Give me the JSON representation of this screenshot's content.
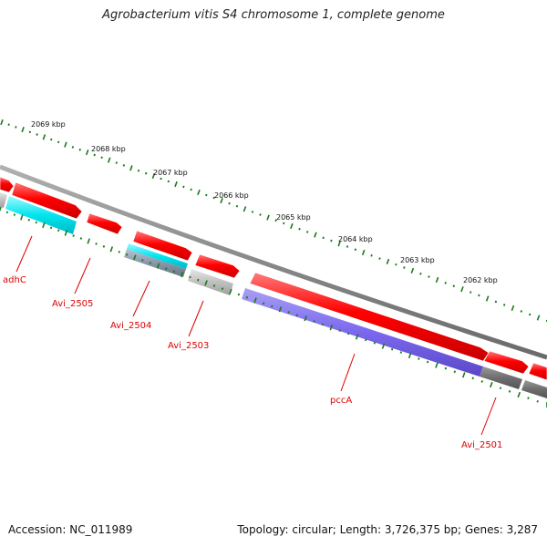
{
  "title": "Agrobacterium vitis S4 chromosome 1, complete genome",
  "footer": {
    "accession": "Accession: NC_011989",
    "summary": "Topology: circular; Length: 3,726,375 bp; Genes: 3,287"
  },
  "colors": {
    "backbone": "#8c8c8c",
    "tick": "#1a7a1a",
    "forward_gene": "#ff0000",
    "label": "#e00000",
    "cyan": "#00e5ee",
    "light_grey": "#c0c0c0",
    "blue_violet": "#7b68ee",
    "dark_grey": "#6e6e6e"
  },
  "scale": {
    "labels": [
      "2069 kbp",
      "2068 kbp",
      "2067 kbp",
      "2066 kbp",
      "2065 kbp",
      "2064 kbp",
      "2063 kbp",
      "2062 kbp"
    ]
  },
  "gene_labels": [
    "adhC",
    "Avi_2505",
    "Avi_2504",
    "Avi_2503",
    "pccA",
    "Avi_2501"
  ]
}
